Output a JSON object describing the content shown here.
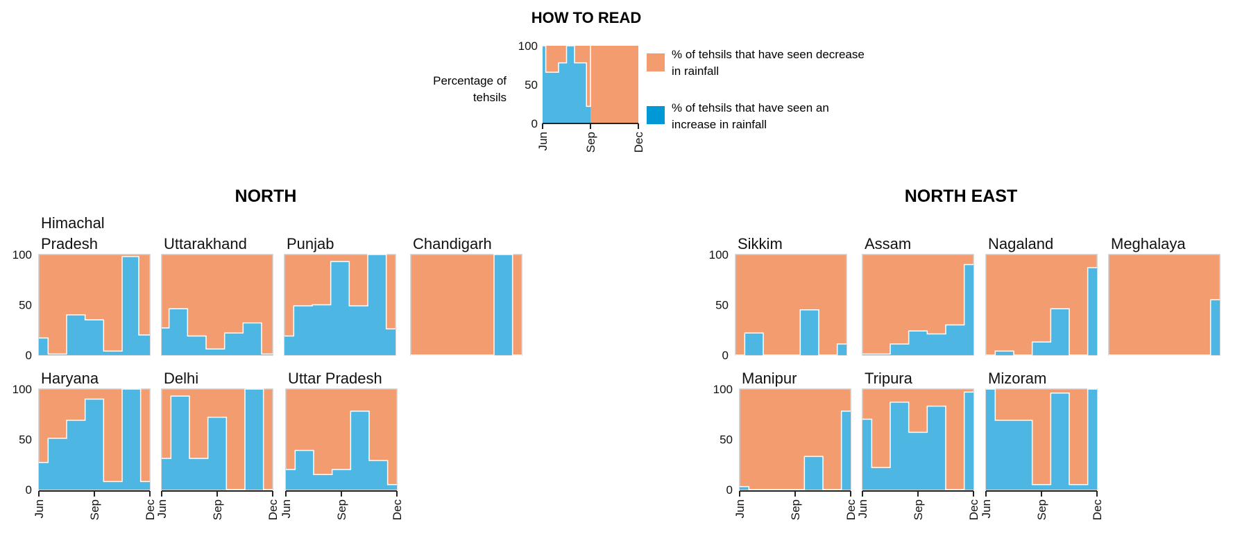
{
  "how_to_read": {
    "title": "HOW TO READ",
    "ylabel_line1": "Percentage of",
    "ylabel_line2": "tehsils",
    "legend": [
      {
        "label_line1": "% of tehsils that have seen decrease",
        "label_line2": "in rainfall",
        "color": "#F29C70"
      },
      {
        "label_line1": "% of tehsils that have seen an",
        "label_line2": "increase in rainfall",
        "color": "#0099D6"
      }
    ]
  },
  "colors": {
    "decrease": "#F29C70",
    "increase": "#4DB6E2",
    "axis": "#222222",
    "frame": "#cccccc"
  },
  "section_titles": {
    "north": "NORTH",
    "north_east": "NORTH EAST"
  },
  "chart_data": {
    "type": "area",
    "x_ticks": [
      "Jun",
      "Sep",
      "Dec"
    ],
    "y_ticks": [
      "0",
      "50",
      "100"
    ],
    "ylim": [
      0,
      100
    ],
    "x_range": [
      0,
      6
    ],
    "guide": {
      "title": "HOW TO READ",
      "steps": [
        [
          0,
          100
        ],
        [
          0.2,
          100
        ],
        [
          0.2,
          66
        ],
        [
          1,
          66
        ],
        [
          1,
          78
        ],
        [
          1.5,
          78
        ],
        [
          1.5,
          100
        ],
        [
          2,
          100
        ],
        [
          2,
          78
        ],
        [
          2.75,
          78
        ],
        [
          2.75,
          22
        ],
        [
          3,
          22
        ],
        [
          3,
          100
        ]
      ]
    },
    "regions": [
      {
        "name": "NORTH",
        "charts": [
          {
            "name_lines": [
              "Himachal",
              "Pradesh"
            ],
            "steps": [
              [
                0,
                17
              ],
              [
                0.5,
                17
              ],
              [
                0.5,
                1
              ],
              [
                1.5,
                1
              ],
              [
                1.5,
                40
              ],
              [
                2.5,
                40
              ],
              [
                2.5,
                35
              ],
              [
                3.5,
                35
              ],
              [
                3.5,
                4
              ],
              [
                4.5,
                4
              ],
              [
                4.5,
                98
              ],
              [
                5.4,
                98
              ],
              [
                5.4,
                20
              ],
              [
                6,
                20
              ]
            ]
          },
          {
            "name_lines": [
              "Uttarakhand"
            ],
            "steps": [
              [
                0,
                27
              ],
              [
                0.4,
                27
              ],
              [
                0.4,
                46
              ],
              [
                1.4,
                46
              ],
              [
                1.4,
                19
              ],
              [
                2.4,
                19
              ],
              [
                2.4,
                6
              ],
              [
                3.4,
                6
              ],
              [
                3.4,
                22
              ],
              [
                4.4,
                22
              ],
              [
                4.4,
                32
              ],
              [
                5.4,
                32
              ],
              [
                5.4,
                1
              ],
              [
                6,
                1
              ]
            ]
          },
          {
            "name_lines": [
              "Punjab"
            ],
            "steps": [
              [
                0,
                19
              ],
              [
                0.5,
                19
              ],
              [
                0.5,
                49
              ],
              [
                1.5,
                49
              ],
              [
                1.5,
                50
              ],
              [
                2.5,
                50
              ],
              [
                2.5,
                93
              ],
              [
                3.5,
                93
              ],
              [
                3.5,
                49
              ],
              [
                4.5,
                49
              ],
              [
                4.5,
                100
              ],
              [
                5.5,
                100
              ],
              [
                5.5,
                26
              ],
              [
                6,
                26
              ]
            ]
          },
          {
            "name_lines": [
              "Chandigarh"
            ],
            "steps": [
              [
                0,
                0
              ],
              [
                4.5,
                0
              ],
              [
                4.5,
                100
              ],
              [
                5.5,
                100
              ],
              [
                5.5,
                0
              ],
              [
                6,
                0
              ]
            ]
          },
          {
            "name_lines": [
              "Haryana"
            ],
            "steps": [
              [
                0,
                27
              ],
              [
                0.5,
                27
              ],
              [
                0.5,
                51
              ],
              [
                1.5,
                51
              ],
              [
                1.5,
                69
              ],
              [
                2.5,
                69
              ],
              [
                2.5,
                90
              ],
              [
                3.5,
                90
              ],
              [
                3.5,
                8
              ],
              [
                4.5,
                8
              ],
              [
                4.5,
                100
              ],
              [
                5.5,
                100
              ],
              [
                5.5,
                8
              ],
              [
                6,
                8
              ]
            ]
          },
          {
            "name_lines": [
              "Delhi"
            ],
            "steps": [
              [
                0,
                31
              ],
              [
                0.5,
                31
              ],
              [
                0.5,
                93
              ],
              [
                1.5,
                93
              ],
              [
                1.5,
                31
              ],
              [
                2.5,
                31
              ],
              [
                2.5,
                72
              ],
              [
                3.5,
                72
              ],
              [
                3.5,
                0
              ],
              [
                4.5,
                0
              ],
              [
                4.5,
                100
              ],
              [
                5.5,
                100
              ],
              [
                5.5,
                0
              ],
              [
                6,
                0
              ]
            ]
          },
          {
            "name_lines": [
              "Uttar Pradesh"
            ],
            "steps": [
              [
                0,
                20
              ],
              [
                0.5,
                20
              ],
              [
                0.5,
                39
              ],
              [
                1.5,
                39
              ],
              [
                1.5,
                15
              ],
              [
                2.5,
                15
              ],
              [
                2.5,
                20
              ],
              [
                3.5,
                20
              ],
              [
                3.5,
                78
              ],
              [
                4.5,
                78
              ],
              [
                4.5,
                29
              ],
              [
                5.5,
                29
              ],
              [
                5.5,
                5
              ],
              [
                6,
                5
              ]
            ]
          }
        ]
      },
      {
        "name": "NORTH EAST",
        "charts": [
          {
            "name_lines": [
              "Sikkim"
            ],
            "steps": [
              [
                0,
                0
              ],
              [
                0.5,
                0
              ],
              [
                0.5,
                22
              ],
              [
                1.5,
                22
              ],
              [
                1.5,
                0
              ],
              [
                3.5,
                0
              ],
              [
                3.5,
                45
              ],
              [
                4.5,
                45
              ],
              [
                4.5,
                0
              ],
              [
                5.5,
                0
              ],
              [
                5.5,
                11
              ],
              [
                6,
                11
              ]
            ]
          },
          {
            "name_lines": [
              "Assam"
            ],
            "steps": [
              [
                0,
                1
              ],
              [
                1.5,
                1
              ],
              [
                1.5,
                11
              ],
              [
                2.5,
                11
              ],
              [
                2.5,
                24
              ],
              [
                3.5,
                24
              ],
              [
                3.5,
                21
              ],
              [
                4.5,
                21
              ],
              [
                4.5,
                30
              ],
              [
                5.5,
                30
              ],
              [
                5.5,
                90
              ],
              [
                6,
                90
              ]
            ]
          },
          {
            "name_lines": [
              "Nagaland"
            ],
            "steps": [
              [
                0,
                0
              ],
              [
                0.5,
                0
              ],
              [
                0.5,
                4
              ],
              [
                1.5,
                4
              ],
              [
                1.5,
                0
              ],
              [
                2.5,
                0
              ],
              [
                2.5,
                13
              ],
              [
                3.5,
                13
              ],
              [
                3.5,
                46
              ],
              [
                4.5,
                46
              ],
              [
                4.5,
                0
              ],
              [
                5.5,
                0
              ],
              [
                5.5,
                87
              ],
              [
                6,
                87
              ]
            ]
          },
          {
            "name_lines": [
              "Meghalaya"
            ],
            "steps": [
              [
                0,
                0
              ],
              [
                5.5,
                0
              ],
              [
                5.5,
                55
              ],
              [
                6,
                55
              ]
            ]
          },
          {
            "name_lines": [
              "Manipur"
            ],
            "steps": [
              [
                0,
                3
              ],
              [
                0.5,
                3
              ],
              [
                0.5,
                0
              ],
              [
                3.5,
                0
              ],
              [
                3.5,
                33
              ],
              [
                4.5,
                33
              ],
              [
                4.5,
                0
              ],
              [
                5.5,
                0
              ],
              [
                5.5,
                78
              ],
              [
                6,
                78
              ]
            ]
          },
          {
            "name_lines": [
              "Tripura"
            ],
            "steps": [
              [
                0,
                70
              ],
              [
                0.5,
                70
              ],
              [
                0.5,
                22
              ],
              [
                1.5,
                22
              ],
              [
                1.5,
                87
              ],
              [
                2.5,
                87
              ],
              [
                2.5,
                57
              ],
              [
                3.5,
                57
              ],
              [
                3.5,
                83
              ],
              [
                4.5,
                83
              ],
              [
                4.5,
                0
              ],
              [
                5.5,
                0
              ],
              [
                5.5,
                97
              ],
              [
                6,
                97
              ]
            ]
          },
          {
            "name_lines": [
              "Mizoram"
            ],
            "steps": [
              [
                0,
                100
              ],
              [
                0.5,
                100
              ],
              [
                0.5,
                69
              ],
              [
                2.5,
                69
              ],
              [
                2.5,
                5
              ],
              [
                3.5,
                5
              ],
              [
                3.5,
                96
              ],
              [
                4.5,
                96
              ],
              [
                4.5,
                5
              ],
              [
                5.5,
                5
              ],
              [
                5.5,
                100
              ],
              [
                6,
                100
              ]
            ]
          }
        ]
      }
    ]
  }
}
